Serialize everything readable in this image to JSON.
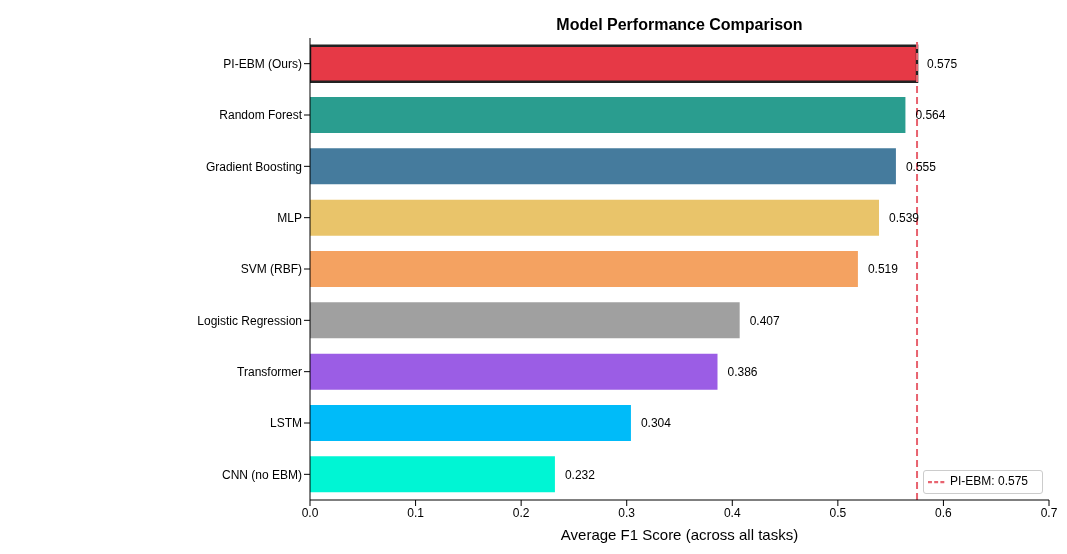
{
  "chart_data": {
    "type": "bar",
    "orientation": "horizontal",
    "title": "Model Performance Comparison",
    "xlabel": "Average F1 Score (across all tasks)",
    "categories": [
      "PI-EBM (Ours)",
      "Random Forest",
      "Gradient Boosting",
      "MLP",
      "SVM (RBF)",
      "Logistic Regression",
      "Transformer",
      "LSTM",
      "CNN (no EBM)"
    ],
    "values": [
      0.575,
      0.564,
      0.555,
      0.539,
      0.519,
      0.407,
      0.386,
      0.304,
      0.232
    ],
    "colors": [
      "#e63946",
      "#2a9d8f",
      "#457b9d",
      "#e9c46a",
      "#f4a261",
      "#a0a0a0",
      "#9b5de5",
      "#00bbf9",
      "#00f5d4"
    ],
    "xlim": [
      0,
      0.7
    ],
    "xticks": [
      {
        "value": 0,
        "label": "0.0"
      },
      0.1,
      0.2,
      0.3,
      0.4,
      0.5,
      0.6,
      0.7
    ],
    "ref_lines": [
      {
        "axis": "x",
        "value": 0.575,
        "label": "PI-EBM: 0.575",
        "color": "#e8636f",
        "line_style": "dashed"
      }
    ],
    "data_labels": true,
    "legend": "bottom right"
  }
}
